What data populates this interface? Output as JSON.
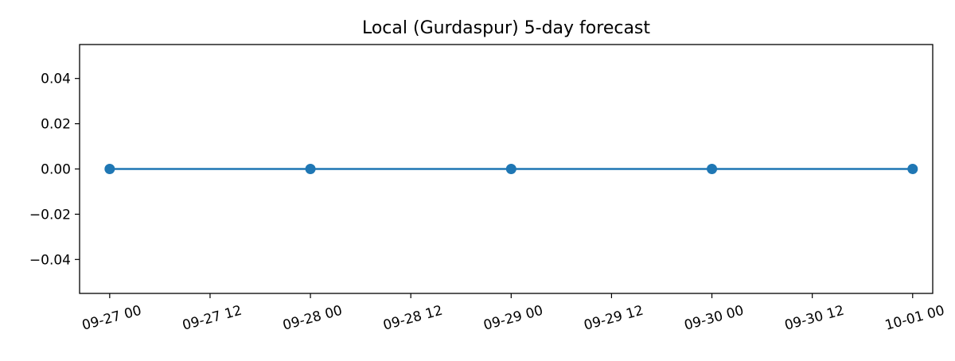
{
  "chart_data": {
    "type": "line",
    "title": "Local (Gurdaspur) 5-day forecast",
    "xlabel": "",
    "ylabel": "",
    "x_ticks": [
      "09-27 00",
      "09-27 12",
      "09-28 00",
      "09-28 12",
      "09-29 00",
      "09-29 12",
      "09-30 00",
      "09-30 12",
      "10-01 00"
    ],
    "y_ticks": [
      "0.04",
      "0.02",
      "0.00",
      "−0.02",
      "−0.04"
    ],
    "y_tick_values": [
      0.04,
      0.02,
      0.0,
      -0.02,
      -0.04
    ],
    "ylim": [
      -0.055,
      0.055
    ],
    "xlim": [
      "09-26 20:24",
      "10-01 02:24"
    ],
    "grid": false,
    "legend": "none",
    "series": [
      {
        "x": [
          "09-27 00",
          "09-28 00",
          "09-29 00",
          "09-30 00",
          "10-01 00"
        ],
        "values": [
          0,
          0,
          0,
          0,
          0
        ],
        "color": "#1f77b4",
        "marker": "circle"
      }
    ]
  }
}
